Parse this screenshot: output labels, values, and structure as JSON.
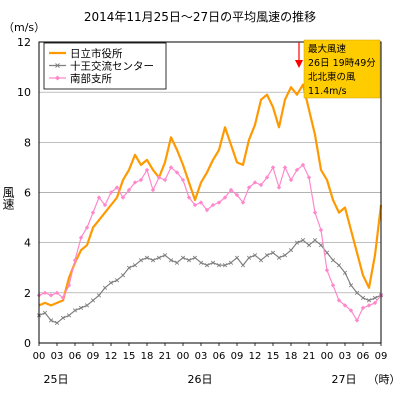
{
  "chart_data": {
    "type": "line",
    "title": "2014年11月25日～27日の平均風速の推移",
    "ylabel_unit": "（m/s）",
    "ylabel": "風速",
    "ylim": [
      0,
      12
    ],
    "yticks": [
      "0",
      "2",
      "4",
      "6",
      "8",
      "10",
      "12"
    ],
    "xtick_labels": [
      "00",
      "03",
      "06",
      "09",
      "12",
      "15",
      "18",
      "21",
      "00",
      "03",
      "06",
      "09",
      "12",
      "15",
      "18",
      "21",
      "00",
      "03",
      "06",
      "09"
    ],
    "date_labels": [
      "25日",
      "26日",
      "27日"
    ],
    "xunit": "（時）",
    "grid": "horizontal",
    "legend_position": "top-left",
    "x_desc": "hours from 2014-11-25 00:00 (hourly, 0–57)",
    "series": [
      {
        "name": "日立市役所",
        "color": "#FF9900",
        "marker": "none",
        "values": [
          1.5,
          1.6,
          1.5,
          1.6,
          1.7,
          2.6,
          3.2,
          3.7,
          3.9,
          4.6,
          4.9,
          5.2,
          5.5,
          5.8,
          6.5,
          6.9,
          7.5,
          7.1,
          7.3,
          6.9,
          6.6,
          7.2,
          8.2,
          7.7,
          7.1,
          6.4,
          5.7,
          6.4,
          6.8,
          7.3,
          7.7,
          8.6,
          7.9,
          7.2,
          7.1,
          8.1,
          8.7,
          9.7,
          9.9,
          9.4,
          8.6,
          9.7,
          10.2,
          9.9,
          10.3,
          9.3,
          8.3,
          6.9,
          6.5,
          5.7,
          5.2,
          5.4,
          4.5,
          3.6,
          2.7,
          2.2,
          3.5,
          5.5
        ]
      },
      {
        "name": "十王交流センター",
        "color": "#808080",
        "marker": "x",
        "values": [
          1.1,
          1.2,
          0.9,
          0.8,
          1.0,
          1.1,
          1.3,
          1.4,
          1.5,
          1.7,
          1.9,
          2.2,
          2.4,
          2.5,
          2.7,
          3.0,
          3.1,
          3.3,
          3.4,
          3.3,
          3.4,
          3.5,
          3.3,
          3.2,
          3.4,
          3.3,
          3.4,
          3.2,
          3.1,
          3.2,
          3.1,
          3.1,
          3.2,
          3.4,
          3.1,
          3.4,
          3.5,
          3.3,
          3.5,
          3.6,
          3.4,
          3.5,
          3.7,
          4.0,
          4.1,
          3.9,
          4.1,
          3.9,
          3.6,
          3.3,
          3.1,
          2.8,
          2.3,
          2.0,
          1.8,
          1.7,
          1.8,
          1.9
        ]
      },
      {
        "name": "南部支所",
        "color": "#FF88CC",
        "marker": "diamond",
        "values": [
          1.9,
          2.0,
          1.9,
          2.0,
          1.8,
          2.3,
          3.3,
          4.2,
          4.6,
          5.2,
          5.8,
          5.5,
          6.0,
          6.2,
          5.8,
          6.1,
          6.4,
          6.5,
          6.9,
          6.1,
          6.6,
          6.5,
          7.0,
          6.8,
          6.5,
          5.8,
          5.5,
          5.6,
          5.3,
          5.5,
          5.6,
          5.8,
          6.1,
          5.9,
          5.6,
          6.2,
          6.4,
          6.3,
          6.6,
          7.0,
          6.2,
          7.0,
          6.5,
          6.9,
          7.1,
          6.6,
          5.2,
          4.5,
          2.9,
          2.3,
          1.7,
          1.5,
          1.3,
          0.9,
          1.4,
          1.5,
          1.6,
          1.9
        ]
      }
    ]
  },
  "annotation": {
    "lines": [
      "最大風速",
      "26日 19時49分",
      "北北東の風",
      "11.4m/s"
    ],
    "box_color": "#FFCC00",
    "arrow_color": "#FF0000"
  }
}
